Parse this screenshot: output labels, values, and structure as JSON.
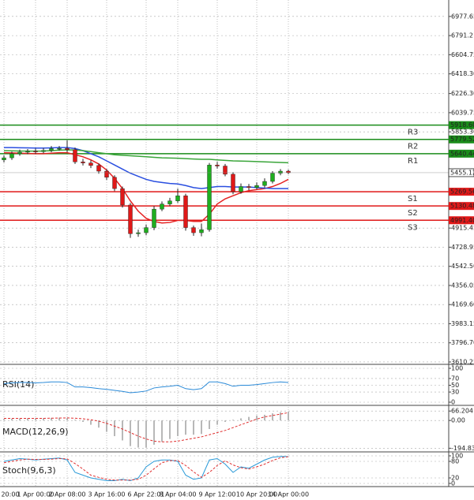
{
  "chart_data": [
    {
      "type": "candlestick",
      "categories": [
        "20:00",
        null,
        null,
        null,
        "1 Apr 00:00",
        null,
        null,
        null,
        "2 Apr 08:00",
        null,
        null,
        null,
        null,
        "3 Apr 16:00",
        null,
        null,
        null,
        null,
        "6 Apr 22:01",
        null,
        null,
        null,
        "8 Apr 04:00",
        null,
        null,
        null,
        null,
        "9 Apr 12:00",
        null,
        null,
        null,
        null,
        "10 Apr 20:00",
        null,
        null,
        null,
        "14 Apr 00:00"
      ],
      "open": [
        5580,
        5600,
        5640,
        5655,
        5665,
        5660,
        5672,
        5690,
        5692,
        5680,
        5560,
        5550,
        5525,
        5470,
        5410,
        5300,
        5140,
        4860,
        4870,
        4920,
        5100,
        5150,
        5180,
        5230,
        4920,
        4870,
        4900,
        5530,
        5520,
        5440,
        5270,
        5320,
        5310,
        5330,
        5370,
        5450,
        5470
      ],
      "high": [
        5625,
        5660,
        5680,
        5685,
        5690,
        5695,
        5715,
        5715,
        5770,
        5700,
        5590,
        5575,
        5545,
        5490,
        5430,
        5320,
        5160,
        4900,
        4950,
        5130,
        5175,
        5210,
        5300,
        5250,
        4940,
        4960,
        5550,
        5560,
        5540,
        5460,
        5350,
        5345,
        5360,
        5400,
        5470,
        5490,
        5485
      ],
      "low": [
        5555,
        5580,
        5620,
        5635,
        5640,
        5645,
        5655,
        5670,
        5655,
        5540,
        5525,
        5500,
        5445,
        5385,
        5275,
        5115,
        4820,
        4830,
        4845,
        4895,
        5080,
        5130,
        5160,
        4890,
        4840,
        4835,
        4880,
        5495,
        5420,
        5245,
        5250,
        5285,
        5290,
        5310,
        5350,
        5430,
        5440
      ],
      "close": [
        5600,
        5640,
        5655,
        5665,
        5660,
        5672,
        5690,
        5692,
        5680,
        5560,
        5550,
        5525,
        5470,
        5410,
        5300,
        5140,
        4860,
        4870,
        4920,
        5100,
        5150,
        5180,
        5230,
        4920,
        4870,
        4900,
        5530,
        5520,
        5440,
        5270,
        5320,
        5310,
        5330,
        5370,
        5450,
        5470,
        5455
      ],
      "up_color": "#1fae1f",
      "down_color": "#e01818",
      "series": [
        {
          "color": "#e52222",
          "values": [
            5650,
            5648,
            5645,
            5642,
            5640,
            5640,
            5645,
            5650,
            5650,
            5630,
            5610,
            5580,
            5540,
            5480,
            5400,
            5300,
            5180,
            5080,
            5010,
            4980,
            4965,
            4970,
            4990,
            4990,
            4980,
            4980,
            5050,
            5150,
            5200,
            5230,
            5260,
            5280,
            5290,
            5300,
            5320,
            5350,
            5390
          ]
        },
        {
          "color": "#2a4fe0",
          "values": [
            5700,
            5700,
            5698,
            5697,
            5695,
            5695,
            5697,
            5700,
            5700,
            5690,
            5670,
            5640,
            5610,
            5570,
            5530,
            5490,
            5450,
            5420,
            5390,
            5370,
            5360,
            5350,
            5345,
            5330,
            5310,
            5300,
            5310,
            5320,
            5320,
            5315,
            5315,
            5315,
            5310,
            5305,
            5300,
            5300,
            5300
          ]
        },
        {
          "color": "#3aa53a",
          "values": [
            5670,
            5668,
            5666,
            5665,
            5665,
            5666,
            5670,
            5675,
            5678,
            5676,
            5670,
            5660,
            5650,
            5640,
            5630,
            5625,
            5620,
            5615,
            5610,
            5605,
            5600,
            5598,
            5596,
            5592,
            5588,
            5585,
            5585,
            5580,
            5575,
            5570,
            5568,
            5566,
            5563,
            5560,
            5558,
            5555,
            5552
          ]
        }
      ],
      "levels": [
        {
          "name": "R3",
          "value": 5918.6,
          "label": "5918.60",
          "color": "#1a8c1a"
        },
        {
          "name": "R2",
          "value": 5779.52,
          "label": "5779.52",
          "color": "#1a8c1a"
        },
        {
          "name": "R1",
          "value": 5640.44,
          "label": "5640.44",
          "color": "#1a8c1a"
        },
        {
          "name": "S1",
          "value": 5269.56,
          "label": "5269.56",
          "color": "#e01818"
        },
        {
          "name": "S2",
          "value": 5130.48,
          "label": "5130.48",
          "color": "#e01818"
        },
        {
          "name": "S3",
          "value": 4991.4,
          "label": "4991.40",
          "color": "#e01818"
        }
      ],
      "last_price": 5455.12,
      "ylim": [
        3587,
        7138
      ],
      "yticks": [
        6977.65,
        6791.21,
        6604.75,
        {
          "value": 6418.3,
          "label": "6418.30"
        },
        {
          "value": 6226.3,
          "label": "6226.30"
        },
        6039.75,
        {
          "value": 5853.3,
          "label": "5853.30"
        },
        4915.45,
        4728.95,
        {
          "value": 4542.5,
          "label": "4542.50"
        },
        4356.05,
        {
          "value": 4169.6,
          "label": "4169.60"
        },
        3983.15,
        {
          "value": 3796.7,
          "label": "3796.70"
        },
        3610.25
      ],
      "grid": true
    },
    {
      "type": "line",
      "title": "RSI(14)",
      "series": [
        {
          "color": "#2a8ad8",
          "values": [
            55,
            57,
            58,
            58,
            57,
            58,
            60,
            60,
            58,
            45,
            45,
            43,
            40,
            38,
            35,
            32,
            28,
            30,
            33,
            42,
            45,
            47,
            50,
            40,
            37,
            40,
            60,
            60,
            55,
            47,
            50,
            50,
            52,
            55,
            58,
            60,
            58
          ]
        }
      ],
      "ylim": [
        0,
        100
      ],
      "yticks": [
        100,
        70,
        50,
        30,
        0
      ],
      "grid": true
    },
    {
      "type": "macd",
      "title": "MACD(12,26,9)",
      "bars": {
        "color": "#b8b8b8",
        "values": [
          10,
          12,
          14,
          15,
          15,
          16,
          18,
          20,
          18,
          5,
          -10,
          -30,
          -50,
          -80,
          -110,
          -140,
          -180,
          -190,
          -190,
          -170,
          -150,
          -130,
          -110,
          -100,
          -100,
          -95,
          -60,
          -30,
          -10,
          5,
          15,
          25,
          35,
          40,
          50,
          58,
          62
        ]
      },
      "series": [
        {
          "color": "#e03030",
          "dashed": true,
          "values": [
            15,
            15,
            15,
            15,
            15,
            15,
            16,
            17,
            18,
            16,
            12,
            5,
            -5,
            -20,
            -40,
            -60,
            -85,
            -110,
            -130,
            -145,
            -150,
            -150,
            -145,
            -135,
            -125,
            -115,
            -100,
            -85,
            -70,
            -50,
            -30,
            -10,
            10,
            25,
            35,
            45,
            55
          ]
        }
      ],
      "ylim": [
        -215,
        95
      ],
      "yticks": [
        66.204,
        {
          "value": 0,
          "label": "0.00"
        },
        -194.833
      ],
      "grid": true
    },
    {
      "type": "line",
      "title": "Stoch(9,6,3)",
      "series": [
        {
          "color": "#2a9ad8",
          "values": [
            80,
            85,
            90,
            88,
            85,
            88,
            90,
            92,
            85,
            40,
            30,
            20,
            15,
            10,
            10,
            15,
            10,
            20,
            60,
            80,
            85,
            85,
            80,
            30,
            15,
            20,
            85,
            90,
            70,
            40,
            60,
            55,
            70,
            85,
            95,
            98,
            97
          ]
        },
        {
          "color": "#e03030",
          "dashed": true,
          "values": [
            75,
            80,
            85,
            88,
            87,
            87,
            88,
            90,
            89,
            72,
            52,
            30,
            22,
            15,
            12,
            12,
            12,
            15,
            30,
            53,
            75,
            83,
            83,
            65,
            42,
            22,
            40,
            65,
            82,
            67,
            57,
            52,
            60,
            70,
            83,
            93,
            97
          ]
        }
      ],
      "ylim": [
        0,
        100
      ],
      "yticks": [
        100,
        80,
        20,
        0
      ],
      "grid": true
    }
  ]
}
